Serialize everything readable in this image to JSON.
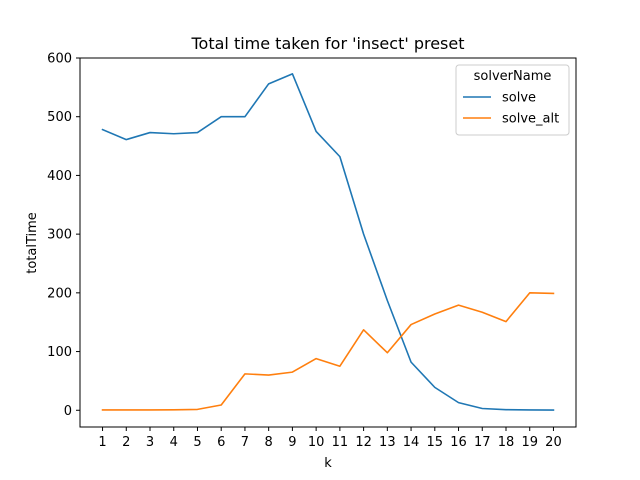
{
  "chart_data": {
    "type": "line",
    "title": "Total time taken for 'insect' preset",
    "xlabel": "k",
    "ylabel": "totalTime",
    "x": [
      1,
      2,
      3,
      4,
      5,
      6,
      7,
      8,
      9,
      10,
      11,
      12,
      13,
      14,
      15,
      16,
      17,
      18,
      19,
      20
    ],
    "xticks": [
      "1",
      "2",
      "3",
      "4",
      "5",
      "6",
      "7",
      "8",
      "9",
      "10",
      "11",
      "12",
      "13",
      "14",
      "15",
      "16",
      "17",
      "18",
      "19",
      "20"
    ],
    "yticks": [
      0,
      100,
      200,
      300,
      400,
      500,
      600
    ],
    "ylim": [
      -28.5,
      600
    ],
    "xlim": [
      0.05,
      20.95
    ],
    "grid": false,
    "legend": {
      "title": "solverName",
      "placement": "top-right"
    },
    "series": [
      {
        "name": "solve",
        "color": "#1f77b4",
        "values": [
          478,
          461,
          473,
          471,
          473,
          500,
          500,
          556,
          573,
          475,
          432,
          300,
          187,
          82,
          39,
          13,
          3,
          1,
          0.5,
          0.3
        ]
      },
      {
        "name": "solve_alt",
        "color": "#ff7f0e",
        "values": [
          0.5,
          0.5,
          0.5,
          0.8,
          1.5,
          9,
          62,
          60,
          65,
          88,
          75,
          137,
          98,
          146,
          164,
          179,
          167,
          151,
          200,
          199
        ]
      }
    ]
  }
}
